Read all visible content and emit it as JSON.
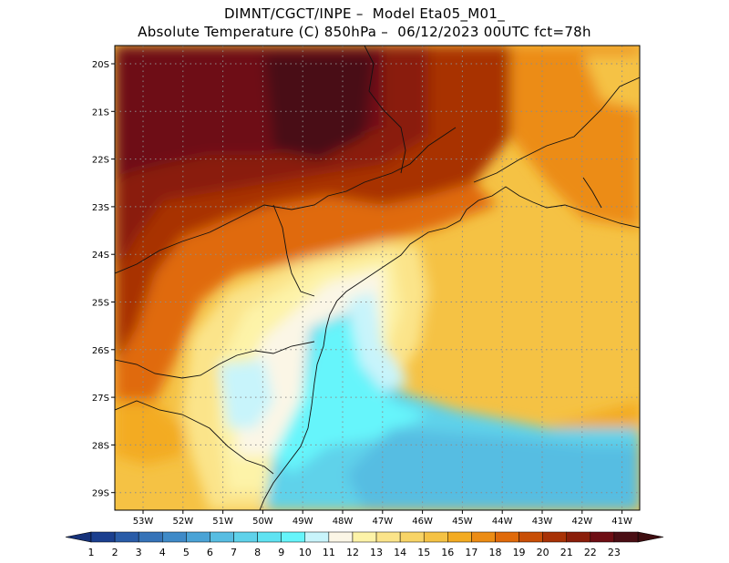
{
  "header": {
    "line1": "DIMNT/CGCT/INPE –  Model Eta05_M01_",
    "line2": "Absolute Temperature (C) 850hPa –  06/12/2023 00UTC fct=78h"
  },
  "map": {
    "lat_labels": [
      "20S",
      "21S",
      "22S",
      "23S",
      "24S",
      "25S",
      "26S",
      "27S",
      "28S",
      "29S"
    ],
    "lon_labels": [
      "53W",
      "52W",
      "51W",
      "50W",
      "49W",
      "48W",
      "47W",
      "46W",
      "45W",
      "44W",
      "43W",
      "42W",
      "41W"
    ]
  },
  "colorbar": {
    "labels": [
      "1",
      "2",
      "3",
      "4",
      "5",
      "6",
      "7",
      "8",
      "9",
      "10",
      "11",
      "12",
      "13",
      "14",
      "15",
      "16",
      "17",
      "18",
      "19",
      "20",
      "21",
      "22",
      "23"
    ],
    "colors": [
      "#1b3f8f",
      "#2a5ca8",
      "#3673b8",
      "#3f8ac8",
      "#4aa3d6",
      "#57bde2",
      "#5fd2ea",
      "#5fe3f2",
      "#66f5fb",
      "#c8f4fb",
      "#fbf6e6",
      "#fdf3a8",
      "#fbe48a",
      "#f8d466",
      "#f5c244",
      "#f3ab22",
      "#ec8c14",
      "#e06a0a",
      "#c84e06",
      "#a83206",
      "#8a1e0a",
      "#6e0e14",
      "#4a0e14"
    ],
    "under_color": "#16327a",
    "over_color": "#3e0d10"
  }
}
